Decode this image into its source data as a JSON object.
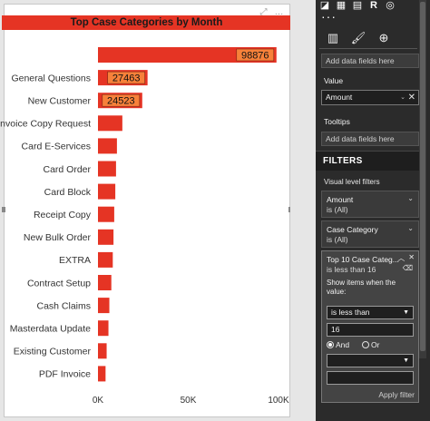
{
  "visual": {
    "title": "Top Case Categories by Month",
    "toolbar_icons": [
      "focus-mode-icon",
      "more-options-icon"
    ]
  },
  "chart_data": {
    "type": "bar",
    "orientation": "horizontal",
    "title": "Top Case Categories by Month",
    "categories": [
      "",
      "General Questions",
      "New Customer",
      "Invoice Copy Request",
      "Card E-Services",
      "Card Order",
      "Card Block",
      "Receipt Copy",
      "New Bulk Order",
      "EXTRA",
      "Contract Setup",
      "Cash Claims",
      "Masterdata Update",
      "Existing Customer",
      "PDF Invoice"
    ],
    "values": [
      98876,
      27463,
      24523,
      13500,
      10500,
      10000,
      9600,
      9000,
      8600,
      8200,
      7400,
      6300,
      5800,
      4800,
      4200
    ],
    "data_labels": [
      "98876",
      "27463",
      "24523",
      "",
      "",
      "",
      "",
      "",
      "",
      "",
      "",
      "",
      "",
      "",
      ""
    ],
    "xlim": [
      0,
      100000
    ],
    "x_ticks": [
      "0K",
      "50K",
      "100K"
    ],
    "x_tick_values": [
      0,
      50000,
      100000
    ],
    "grid": false,
    "bar_color": "#e53424",
    "label_bg_color": "#f7813a"
  },
  "pane": {
    "tab_icons": [
      "fields-icon",
      "format-icon",
      "analytics-icon"
    ],
    "axis_add": "Add data fields here",
    "value_title": "Value",
    "value_field": "Amount",
    "tooltips_title": "Tooltips",
    "tooltips_add": "Add data fields here",
    "filters_title": "FILTERS",
    "visual_level_filters": "Visual level filters",
    "filters": [
      {
        "name": "Amount",
        "value": "is (All)"
      },
      {
        "name": "Case Category",
        "value": "is (All)"
      },
      {
        "name": "Top 10 Case Categ...",
        "value": "is less than 16"
      }
    ],
    "show_items_label": "Show items when the value:",
    "condition": "is less than",
    "condition_value": "16",
    "and_label": "And",
    "or_label": "Or",
    "second_condition": "",
    "second_value": "",
    "apply_label": "Apply filter"
  }
}
